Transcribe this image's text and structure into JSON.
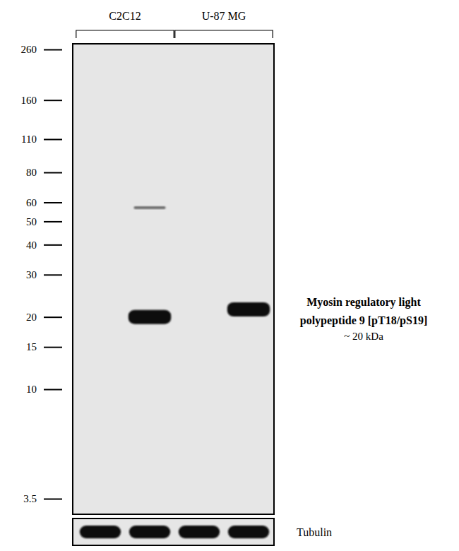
{
  "chart_data": {
    "type": "blot",
    "log": "y",
    "ylim": [
      3.5,
      260
    ],
    "yticks": [
      260,
      160,
      110,
      80,
      60,
      50,
      40,
      30,
      20,
      15,
      10,
      3.5
    ],
    "groups": [
      {
        "label": "C2C12",
        "lanes": [
          0,
          1
        ]
      },
      {
        "label": "U-87 MG",
        "lanes": [
          2,
          3
        ]
      }
    ],
    "bands": {
      "values": [
        null,
        20,
        null,
        21.5
      ]
    },
    "faint_bands": {
      "values": [
        null,
        57,
        null,
        null
      ]
    },
    "annotation": [
      "Myosin regulatory light",
      "polypeptide 9 [pT18/pS19]",
      "~ 20 kDa"
    ],
    "loading_control": {
      "label": "Tubulin",
      "lanes": [
        0,
        1,
        2,
        3
      ]
    }
  }
}
